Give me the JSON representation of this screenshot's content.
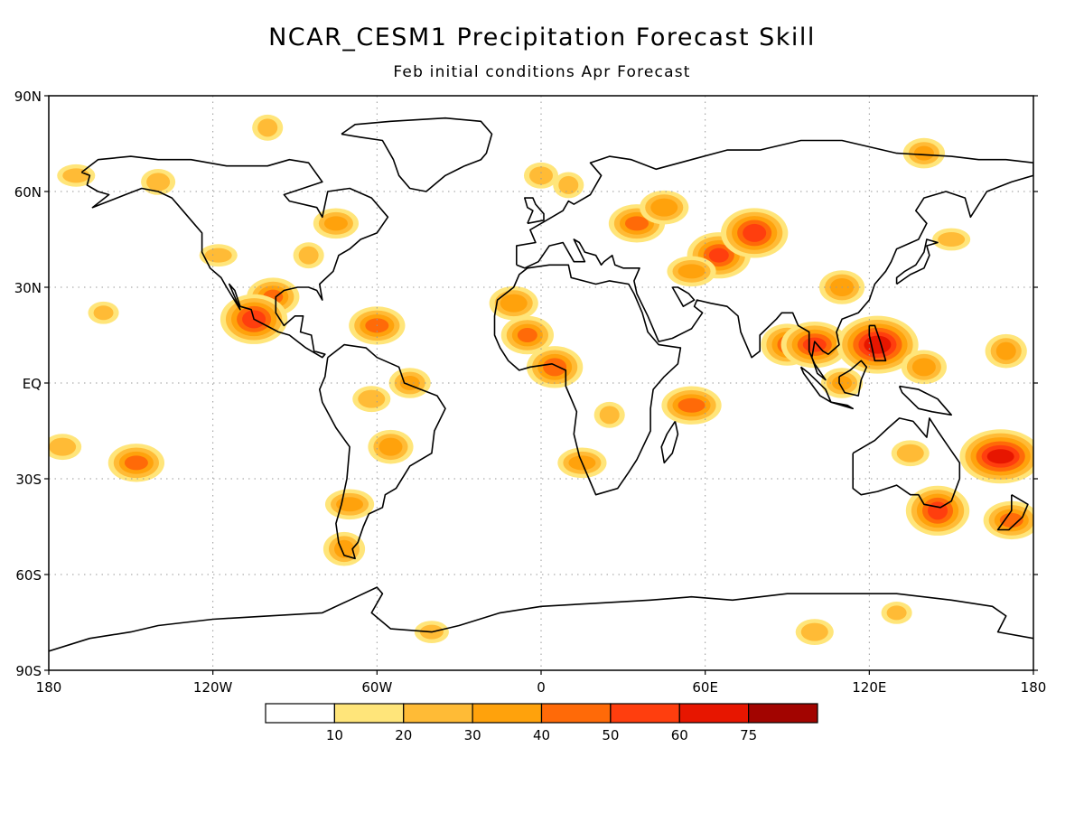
{
  "title": "NCAR_CESM1 Precipitation Forecast Skill",
  "subtitle": "Feb initial conditions  Apr Forecast",
  "map": {
    "projection": "equirectangular",
    "lon_range": [
      -180,
      180
    ],
    "lat_range": [
      -90,
      90
    ],
    "grid_lines": "dotted",
    "lat_ticks": [
      {
        "value": 90,
        "label": "90N"
      },
      {
        "value": 60,
        "label": "60N"
      },
      {
        "value": 30,
        "label": "30N"
      },
      {
        "value": 0,
        "label": "EQ"
      },
      {
        "value": -30,
        "label": "30S"
      },
      {
        "value": -60,
        "label": "60S"
      },
      {
        "value": -90,
        "label": "90S"
      }
    ],
    "lon_ticks": [
      {
        "value": -180,
        "label": "180"
      },
      {
        "value": -120,
        "label": "120W"
      },
      {
        "value": -60,
        "label": "60W"
      },
      {
        "value": 0,
        "label": "0"
      },
      {
        "value": 60,
        "label": "60E"
      },
      {
        "value": 120,
        "label": "120E"
      },
      {
        "value": 180,
        "label": "180"
      }
    ],
    "skill_blobs": [
      {
        "lon": -98,
        "lat": 27,
        "level": 4
      },
      {
        "lon": -105,
        "lat": 20,
        "level": 5
      },
      {
        "lon": -118,
        "lat": 40,
        "level": 2
      },
      {
        "lon": -85,
        "lat": 40,
        "level": 2
      },
      {
        "lon": -60,
        "lat": 18,
        "level": 4
      },
      {
        "lon": -62,
        "lat": -5,
        "level": 2
      },
      {
        "lon": -48,
        "lat": 0,
        "level": 3
      },
      {
        "lon": -55,
        "lat": -20,
        "level": 3
      },
      {
        "lon": -70,
        "lat": -38,
        "level": 3
      },
      {
        "lon": -72,
        "lat": -52,
        "level": 3
      },
      {
        "lon": -148,
        "lat": -25,
        "level": 4
      },
      {
        "lon": -175,
        "lat": -20,
        "level": 2
      },
      {
        "lon": -160,
        "lat": 22,
        "level": 2
      },
      {
        "lon": -140,
        "lat": 63,
        "level": 2
      },
      {
        "lon": -170,
        "lat": 65,
        "level": 2
      },
      {
        "lon": -100,
        "lat": 80,
        "level": 2
      },
      {
        "lon": -75,
        "lat": 50,
        "level": 3
      },
      {
        "lon": -10,
        "lat": 25,
        "level": 3
      },
      {
        "lon": -5,
        "lat": 15,
        "level": 4
      },
      {
        "lon": 5,
        "lat": 5,
        "level": 4
      },
      {
        "lon": 15,
        "lat": -25,
        "level": 3
      },
      {
        "lon": 25,
        "lat": -10,
        "level": 2
      },
      {
        "lon": 35,
        "lat": 50,
        "level": 4
      },
      {
        "lon": 45,
        "lat": 55,
        "level": 3
      },
      {
        "lon": 65,
        "lat": 40,
        "level": 5
      },
      {
        "lon": 78,
        "lat": 47,
        "level": 5
      },
      {
        "lon": 55,
        "lat": 35,
        "level": 3
      },
      {
        "lon": 90,
        "lat": 12,
        "level": 4
      },
      {
        "lon": 100,
        "lat": 12,
        "level": 5
      },
      {
        "lon": 123,
        "lat": 12,
        "level": 6
      },
      {
        "lon": 110,
        "lat": 0,
        "level": 3
      },
      {
        "lon": 140,
        "lat": 5,
        "level": 3
      },
      {
        "lon": 168,
        "lat": -23,
        "level": 6
      },
      {
        "lon": 145,
        "lat": -40,
        "level": 5
      },
      {
        "lon": 172,
        "lat": -43,
        "level": 4
      },
      {
        "lon": 135,
        "lat": -22,
        "level": 2
      },
      {
        "lon": 140,
        "lat": 72,
        "level": 3
      },
      {
        "lon": 110,
        "lat": 30,
        "level": 3
      },
      {
        "lon": 150,
        "lat": 45,
        "level": 2
      },
      {
        "lon": 170,
        "lat": 10,
        "level": 3
      },
      {
        "lon": -40,
        "lat": -78,
        "level": 2
      },
      {
        "lon": 100,
        "lat": -78,
        "level": 2
      },
      {
        "lon": 130,
        "lat": -72,
        "level": 2
      },
      {
        "lon": 0,
        "lat": 65,
        "level": 2
      },
      {
        "lon": 55,
        "lat": -7,
        "level": 4
      },
      {
        "lon": 10,
        "lat": 62,
        "level": 2
      }
    ]
  },
  "colorbar": {
    "levels": [
      "10",
      "20",
      "30",
      "40",
      "50",
      "60",
      "75"
    ],
    "colors": [
      "#ffffff",
      "#ffe57a",
      "#ffbb36",
      "#ffa20c",
      "#ff6a08",
      "#ff3e0e",
      "#e71600",
      "#a20400"
    ]
  },
  "colors": {
    "coastline": "#000000",
    "grid": "#999999",
    "frame": "#000000"
  }
}
